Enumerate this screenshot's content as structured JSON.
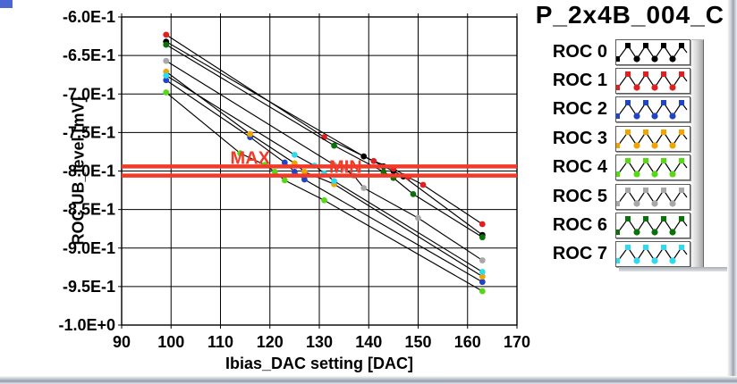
{
  "window": {
    "accent_color": "#4a67d2"
  },
  "chart_data": {
    "type": "line",
    "title": "P_2x4B_004_C",
    "xlabel": "Ibias_DAC setting [DAC]",
    "ylabel": "ROC UB_level [mV]",
    "xlim": [
      90,
      170
    ],
    "ylim": [
      -1.0,
      -0.6
    ],
    "x_ticks": [
      90,
      100,
      110,
      120,
      130,
      140,
      150,
      160,
      170
    ],
    "y_ticks": [
      {
        "value": -0.6,
        "label": "-6.0E-1"
      },
      {
        "value": -0.65,
        "label": "-6.5E-1"
      },
      {
        "value": -0.7,
        "label": "-7.0E-1"
      },
      {
        "value": -0.75,
        "label": "-7.5E-1"
      },
      {
        "value": -0.8,
        "label": "-8.0E-1"
      },
      {
        "value": -0.85,
        "label": "-8.5E-1"
      },
      {
        "value": -0.9,
        "label": "-9.0E-1"
      },
      {
        "value": -0.95,
        "label": "-9.5E-1"
      },
      {
        "value": -1.0,
        "label": "-1.0E+0"
      }
    ],
    "grid": true,
    "legend_position": "right",
    "connector_color": "#000000",
    "limit_lines": [
      {
        "label": "MAX",
        "value": -0.794,
        "color": "#f23a28",
        "label_x": 112
      },
      {
        "label": "MIN",
        "value": -0.806,
        "color": "#f23a28",
        "label_x": 132
      }
    ],
    "series": [
      {
        "name": "ROC 0",
        "color": "#000000",
        "points": [
          [
            99,
            -0.632
          ],
          [
            139,
            -0.781
          ],
          [
            143,
            -0.794
          ],
          [
            145,
            -0.8
          ],
          [
            147,
            -0.807
          ],
          [
            163,
            -0.883
          ]
        ]
      },
      {
        "name": "ROC 1",
        "color": "#e02020",
        "points": [
          [
            99,
            -0.623
          ],
          [
            131,
            -0.756
          ],
          [
            141,
            -0.787
          ],
          [
            145,
            -0.797
          ],
          [
            148,
            -0.808
          ],
          [
            151,
            -0.818
          ],
          [
            163,
            -0.869
          ]
        ]
      },
      {
        "name": "ROC 2",
        "color": "#2044c8",
        "points": [
          [
            99,
            -0.682
          ],
          [
            116,
            -0.756
          ],
          [
            123,
            -0.789
          ],
          [
            125,
            -0.801
          ],
          [
            127,
            -0.811
          ],
          [
            163,
            -0.944
          ]
        ]
      },
      {
        "name": "ROC 3",
        "color": "#f0a400",
        "points": [
          [
            99,
            -0.671
          ],
          [
            116,
            -0.752
          ],
          [
            125,
            -0.79
          ],
          [
            127,
            -0.801
          ],
          [
            133,
            -0.817
          ],
          [
            163,
            -0.937
          ]
        ]
      },
      {
        "name": "ROC 4",
        "color": "#55d912",
        "points": [
          [
            99,
            -0.698
          ],
          [
            114,
            -0.777
          ],
          [
            119,
            -0.792
          ],
          [
            121,
            -0.801
          ],
          [
            123,
            -0.812
          ],
          [
            131,
            -0.838
          ],
          [
            163,
            -0.956
          ]
        ]
      },
      {
        "name": "ROC 5",
        "color": "#a8a8a8",
        "points": [
          [
            99,
            -0.657
          ],
          [
            133,
            -0.792
          ],
          [
            135,
            -0.797
          ],
          [
            137,
            -0.806
          ],
          [
            139,
            -0.822
          ],
          [
            150,
            -0.861
          ],
          [
            163,
            -0.916
          ]
        ]
      },
      {
        "name": "ROC 6",
        "color": "#0b720b",
        "points": [
          [
            99,
            -0.636
          ],
          [
            133,
            -0.767
          ],
          [
            143,
            -0.801
          ],
          [
            145,
            -0.809
          ],
          [
            149,
            -0.83
          ],
          [
            163,
            -0.886
          ]
        ]
      },
      {
        "name": "ROC 7",
        "color": "#2fd9ee",
        "points": [
          [
            99,
            -0.676
          ],
          [
            125,
            -0.779
          ],
          [
            129,
            -0.793
          ],
          [
            131,
            -0.803
          ],
          [
            133,
            -0.813
          ],
          [
            163,
            -0.931
          ]
        ]
      }
    ]
  }
}
